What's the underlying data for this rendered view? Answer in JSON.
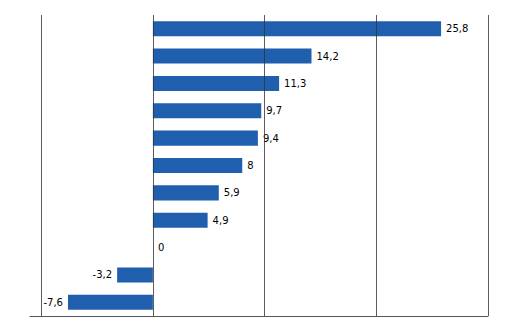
{
  "chart_data": {
    "type": "bar",
    "orientation": "horizontal",
    "categories": [
      null,
      null,
      null,
      null,
      null,
      null,
      null,
      null,
      null,
      null,
      null
    ],
    "values": [
      25.8,
      14.2,
      11.3,
      9.7,
      9.4,
      8.0,
      5.9,
      4.9,
      0.0,
      -3.2,
      -7.6
    ],
    "value_labels": [
      "25,8",
      "14,2",
      "11,3",
      "9,7",
      "9,4",
      "8",
      "5,9",
      "4,9",
      "0",
      "-3,2",
      "-7,6"
    ],
    "data_labels": true,
    "color": "#1F5FAD",
    "xlim": [
      -11,
      30
    ],
    "xticks": [
      -10,
      0,
      10,
      20,
      30
    ],
    "grid": true,
    "tick_labels": false
  }
}
